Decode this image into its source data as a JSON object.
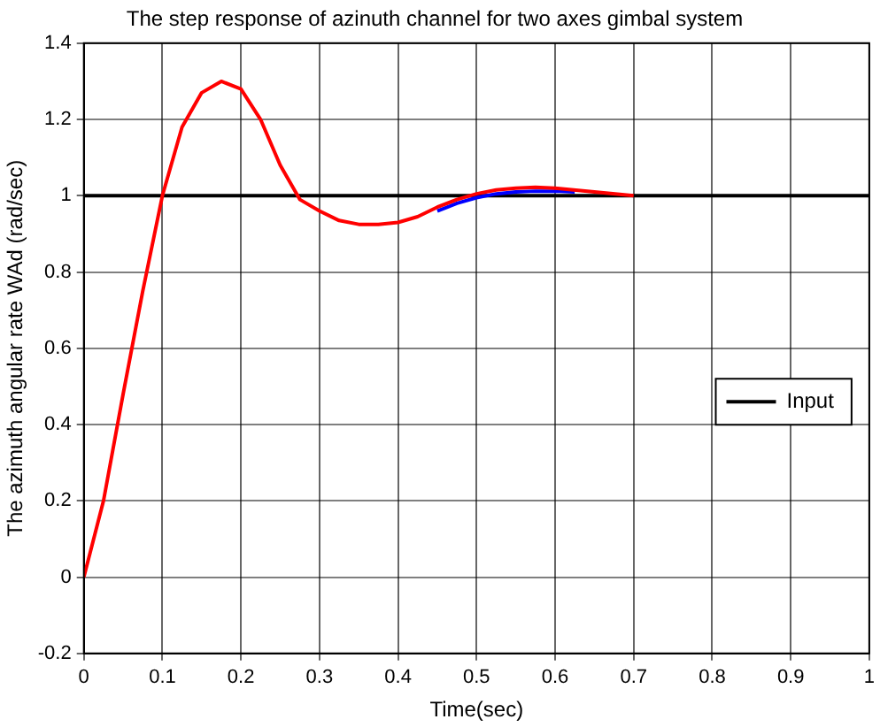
{
  "chart_data": {
    "type": "line",
    "title": "The step response of azinuth channel for two axes gimbal system",
    "xlabel": "Time(sec)",
    "ylabel": "The azimuth angular rate WAd (rad/sec)",
    "xlim": [
      0,
      1
    ],
    "ylim": [
      -0.2,
      1.4
    ],
    "xticks": [
      0,
      0.1,
      0.2,
      0.3,
      0.4,
      0.5,
      0.6,
      0.7,
      0.8,
      0.9,
      1
    ],
    "yticks": [
      -0.2,
      0,
      0.2,
      0.4,
      0.6,
      0.8,
      1,
      1.2,
      1.4
    ],
    "grid": true,
    "legend": "right",
    "marker": "none",
    "line_style": "solid",
    "series": [
      {
        "name": "Input",
        "color": "#000000",
        "x": [
          0,
          1
        ],
        "values": [
          1,
          1
        ]
      },
      {
        "color": "#0000ff",
        "x": [
          0.45,
          0.475,
          0.5,
          0.525,
          0.55,
          0.575,
          0.6,
          0.625
        ],
        "values": [
          0.96,
          0.98,
          0.995,
          1.005,
          1.01,
          1.012,
          1.012,
          1.01
        ]
      },
      {
        "color": "#ff0000",
        "x": [
          0,
          0.025,
          0.05,
          0.075,
          0.1,
          0.125,
          0.15,
          0.175,
          0.2,
          0.225,
          0.25,
          0.275,
          0.3,
          0.325,
          0.35,
          0.375,
          0.4,
          0.425,
          0.45,
          0.475,
          0.5,
          0.525,
          0.55,
          0.575,
          0.6,
          0.65,
          0.7
        ],
        "values": [
          0,
          0.2,
          0.48,
          0.75,
          1.0,
          1.18,
          1.27,
          1.3,
          1.28,
          1.2,
          1.08,
          0.99,
          0.96,
          0.935,
          0.925,
          0.925,
          0.93,
          0.945,
          0.97,
          0.99,
          1.005,
          1.015,
          1.02,
          1.022,
          1.02,
          1.01,
          1.0
        ]
      }
    ]
  }
}
